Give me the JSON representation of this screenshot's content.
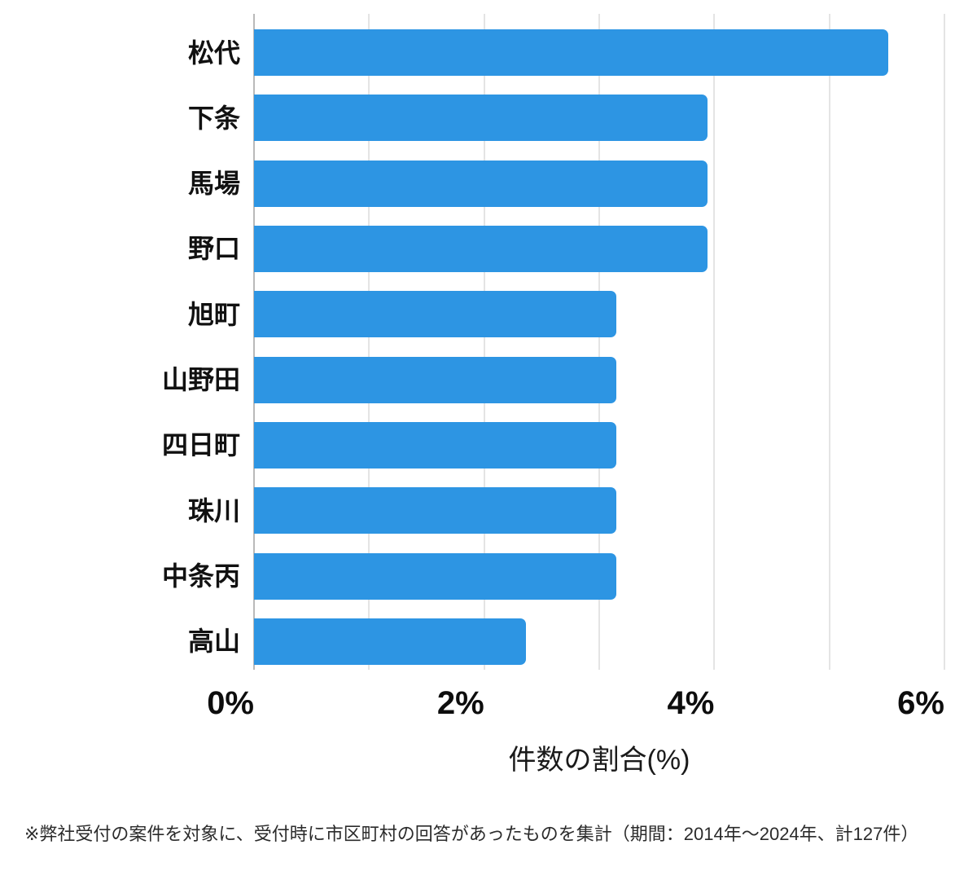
{
  "chart_data": {
    "type": "bar",
    "orientation": "horizontal",
    "categories": [
      "松代",
      "下条",
      "馬場",
      "野口",
      "旭町",
      "山野田",
      "四日町",
      "珠川",
      "中条丙",
      "高山"
    ],
    "values": [
      5.51,
      3.94,
      3.94,
      3.94,
      3.15,
      3.15,
      3.15,
      3.15,
      3.15,
      2.36
    ],
    "title": "",
    "xlabel": "件数の割合(%)",
    "ylabel": "",
    "xlim": [
      0,
      6
    ],
    "xticks": [
      0,
      2,
      4,
      6
    ],
    "xtick_labels": [
      "0%",
      "2%",
      "4%",
      "6%"
    ],
    "gridline_interval": 1,
    "grid": true,
    "legend": false
  },
  "footnote": "※弊社受付の案件を対象に、受付時に市区町村の回答があったものを集計（期間：2014年～2024年、計127件）",
  "colors": {
    "bar": "#2D95E3",
    "grid": "#E4E4E4",
    "zero_line": "#B9B9B9",
    "text": "#111111",
    "footnote": "#2B2B2B",
    "background": "#FFFFFF"
  }
}
